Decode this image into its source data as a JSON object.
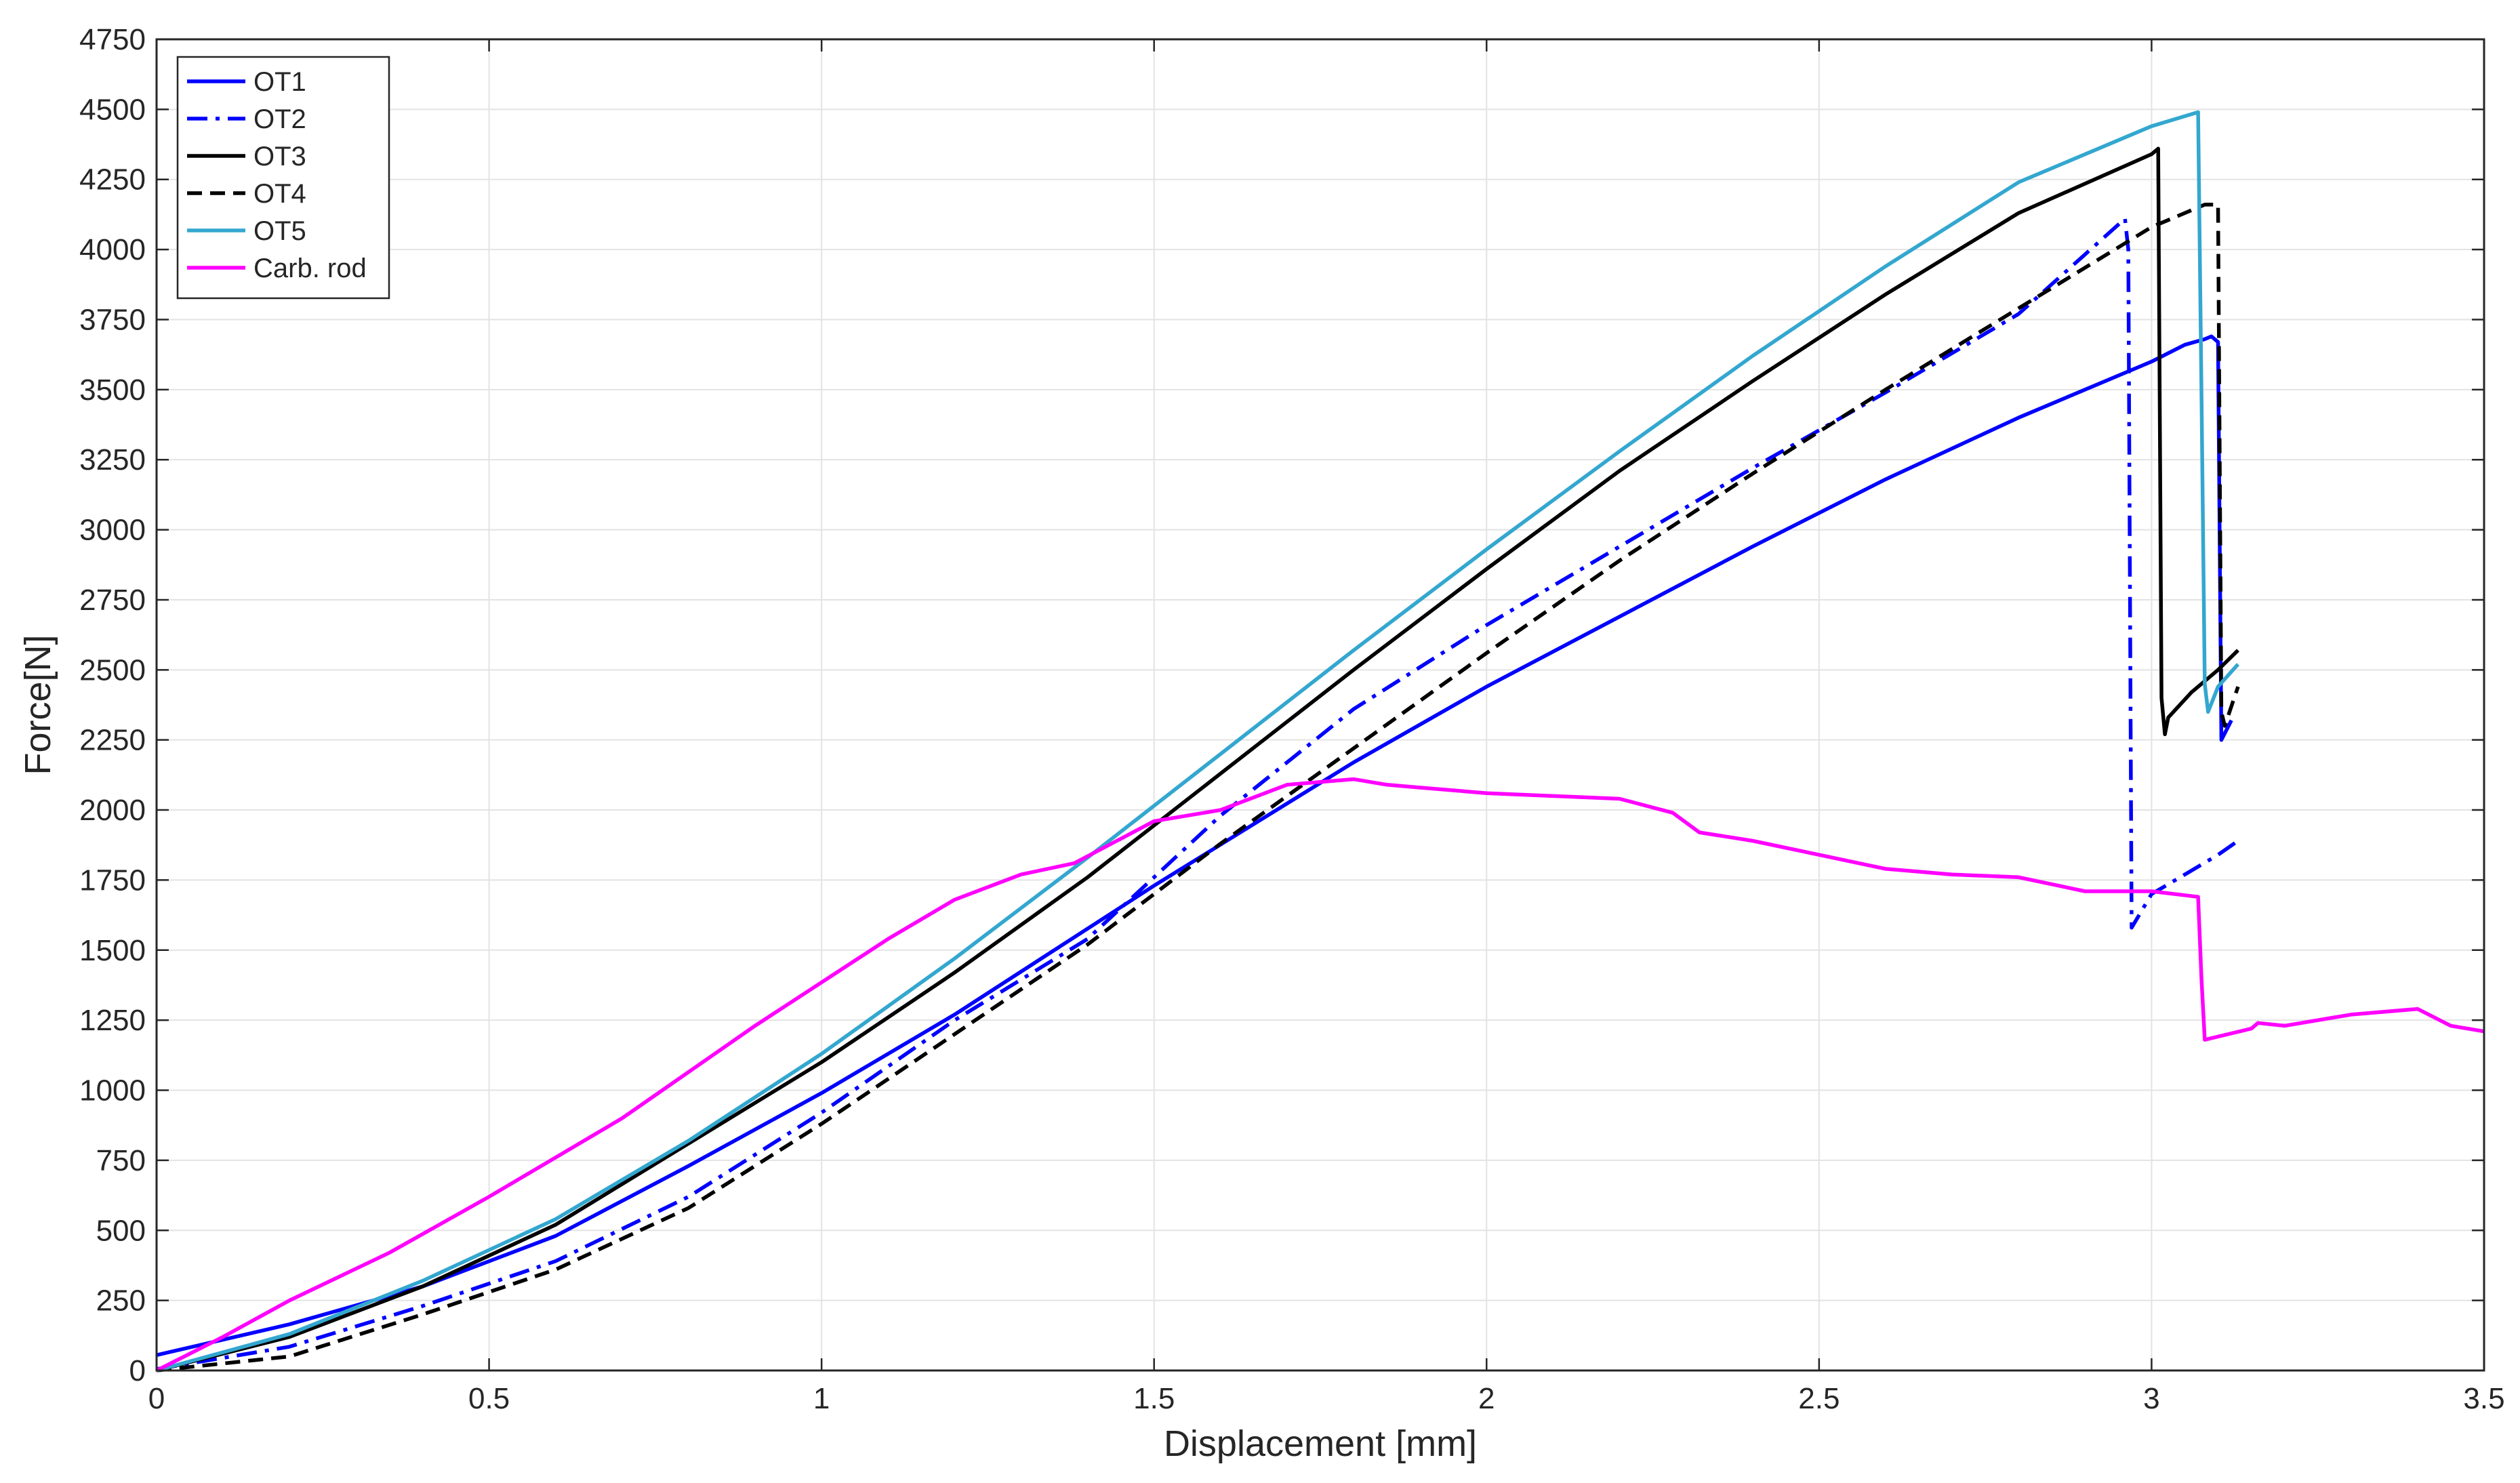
{
  "chart_data": {
    "type": "line",
    "xlabel": "Displacement [mm]",
    "ylabel": "Force[N]",
    "xlim": [
      0,
      3.5
    ],
    "ylim": [
      0,
      4750
    ],
    "x_ticks": [
      0,
      0.5,
      1,
      1.5,
      2,
      2.5,
      3,
      3.5
    ],
    "x_tick_labels": [
      "0",
      "0.5",
      "1",
      "1.5",
      "2",
      "2.5",
      "3",
      "3.5"
    ],
    "y_ticks": [
      0,
      250,
      500,
      750,
      1000,
      1250,
      1500,
      1750,
      2000,
      2250,
      2500,
      2750,
      3000,
      3250,
      3500,
      3750,
      4000,
      4250,
      4500,
      4750
    ],
    "y_tick_labels": [
      "0",
      "250",
      "500",
      "750",
      "1000",
      "1250",
      "1500",
      "1750",
      "2000",
      "2250",
      "2500",
      "2750",
      "3000",
      "3250",
      "3500",
      "3750",
      "4000",
      "4250",
      "4500",
      "4750"
    ],
    "grid": true,
    "legend_position": "top-left",
    "series": [
      {
        "name": "OT1",
        "color": "#0000ff",
        "dash": "solid",
        "x": [
          0,
          0.2,
          0.4,
          0.6,
          0.8,
          1.0,
          1.2,
          1.5,
          1.8,
          2.0,
          2.2,
          2.4,
          2.6,
          2.8,
          3.0,
          3.05,
          3.08,
          3.09,
          3.1,
          3.105,
          3.12
        ],
        "y": [
          55,
          165,
          300,
          480,
          730,
          990,
          1270,
          1730,
          2170,
          2440,
          2690,
          2940,
          3180,
          3400,
          3600,
          3660,
          3680,
          3690,
          3670,
          2250,
          2320
        ]
      },
      {
        "name": "OT2",
        "color": "#0000ff",
        "dash": "dashdot",
        "x": [
          0,
          0.2,
          0.4,
          0.6,
          0.8,
          1.0,
          1.2,
          1.4,
          1.6,
          1.8,
          2.0,
          2.2,
          2.4,
          2.6,
          2.8,
          2.96,
          2.965,
          2.97,
          3.0,
          3.05,
          3.1,
          3.13
        ],
        "y": [
          5,
          85,
          230,
          390,
          620,
          920,
          1250,
          1540,
          1980,
          2360,
          2660,
          2940,
          3220,
          3490,
          3770,
          4110,
          4000,
          1580,
          1700,
          1770,
          1840,
          1890
        ]
      },
      {
        "name": "OT3",
        "color": "#000000",
        "dash": "solid",
        "x": [
          0,
          0.2,
          0.4,
          0.6,
          0.8,
          1.0,
          1.2,
          1.4,
          1.6,
          1.8,
          2.0,
          2.2,
          2.4,
          2.6,
          2.8,
          3.0,
          3.01,
          3.015,
          3.02,
          3.025,
          3.06,
          3.1,
          3.13
        ],
        "y": [
          0,
          120,
          300,
          520,
          810,
          1100,
          1420,
          1760,
          2130,
          2500,
          2860,
          3210,
          3530,
          3840,
          4130,
          4340,
          4360,
          2400,
          2270,
          2330,
          2420,
          2500,
          2570
        ]
      },
      {
        "name": "OT4",
        "color": "#000000",
        "dash": "dashdash",
        "x": [
          0,
          0.2,
          0.4,
          0.6,
          0.8,
          1.0,
          1.2,
          1.4,
          1.6,
          1.8,
          2.0,
          2.2,
          2.4,
          2.6,
          2.8,
          3.0,
          3.08,
          3.1,
          3.105,
          3.11,
          3.13
        ],
        "y": [
          0,
          50,
          200,
          360,
          580,
          880,
          1200,
          1520,
          1880,
          2220,
          2560,
          2890,
          3200,
          3500,
          3790,
          4080,
          4160,
          4160,
          2350,
          2300,
          2440
        ]
      },
      {
        "name": "OT5",
        "color": "#33a7cf",
        "dash": "solid",
        "x": [
          0,
          0.2,
          0.4,
          0.6,
          0.8,
          1.0,
          1.2,
          1.4,
          1.6,
          1.8,
          2.0,
          2.2,
          2.4,
          2.6,
          2.8,
          3.0,
          3.07,
          3.075,
          3.08,
          3.085,
          3.1,
          3.13
        ],
        "y": [
          0,
          130,
          320,
          540,
          820,
          1130,
          1470,
          1830,
          2200,
          2570,
          2930,
          3280,
          3620,
          3940,
          4240,
          4440,
          4490,
          3500,
          2450,
          2350,
          2440,
          2520
        ]
      },
      {
        "name": "Carb. rod",
        "color": "#ff00ff",
        "dash": "solid",
        "x": [
          0,
          0.1,
          0.2,
          0.35,
          0.5,
          0.7,
          0.9,
          1.1,
          1.2,
          1.3,
          1.38,
          1.5,
          1.6,
          1.7,
          1.8,
          1.85,
          1.9,
          2.0,
          2.1,
          2.2,
          2.28,
          2.32,
          2.4,
          2.5,
          2.6,
          2.7,
          2.8,
          2.9,
          3.0,
          3.07,
          3.075,
          3.08,
          3.15,
          3.16,
          3.2,
          3.3,
          3.4,
          3.45,
          3.5
        ],
        "y": [
          0,
          120,
          250,
          420,
          620,
          900,
          1230,
          1540,
          1680,
          1770,
          1810,
          1960,
          2000,
          2090,
          2110,
          2090,
          2080,
          2060,
          2050,
          2040,
          1990,
          1920,
          1890,
          1840,
          1790,
          1770,
          1760,
          1710,
          1710,
          1690,
          1400,
          1180,
          1220,
          1240,
          1230,
          1270,
          1290,
          1230,
          1210
        ]
      }
    ]
  }
}
